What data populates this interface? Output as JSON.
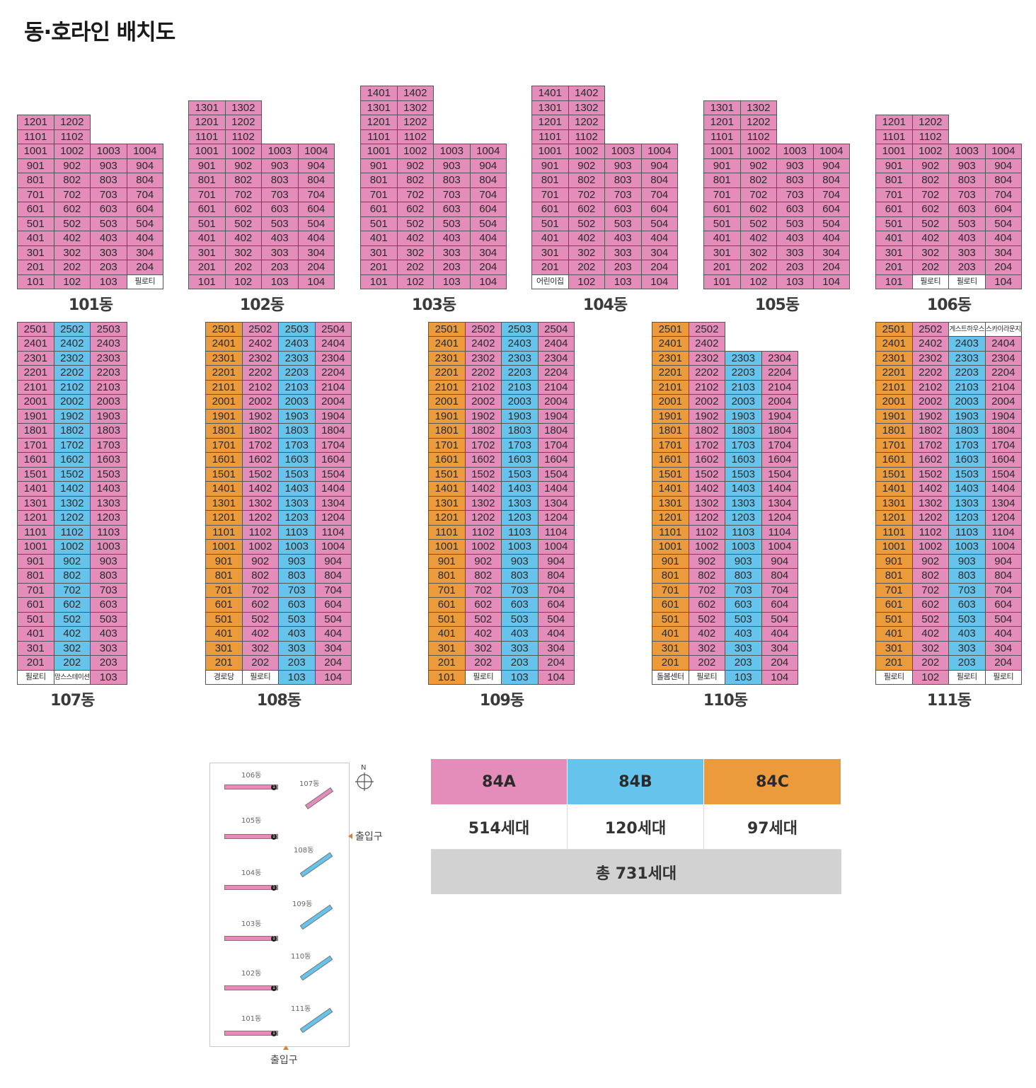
{
  "title": "동·호라인 배치도",
  "colors": {
    "84A": "#e48cba",
    "84B": "#66c4ec",
    "84C": "#eb9a3c",
    "facility": "#ffffff"
  },
  "buildings": [
    {
      "name": "101동",
      "floors": 12,
      "partial": {
        "lines": [
          1,
          2
        ],
        "floors": [
          11,
          12
        ]
      },
      "lines": [
        "A",
        "A",
        "A",
        "A"
      ],
      "ground": [
        null,
        null,
        null,
        "필로티"
      ]
    },
    {
      "name": "102동",
      "floors": 13,
      "partial": {
        "lines": [
          1,
          2
        ],
        "floors": [
          11,
          12,
          13
        ]
      },
      "lines": [
        "A",
        "A",
        "A",
        "A"
      ],
      "ground": [
        null,
        null,
        null,
        null
      ]
    },
    {
      "name": "103동",
      "floors": 14,
      "partial": {
        "lines": [
          1,
          2
        ],
        "floors": [
          11,
          12,
          13,
          14
        ]
      },
      "lines": [
        "A",
        "A",
        "A",
        "A"
      ],
      "ground": [
        null,
        null,
        null,
        null
      ]
    },
    {
      "name": "104동",
      "floors": 14,
      "partial": {
        "lines": [
          1,
          2
        ],
        "floors": [
          11,
          12,
          13,
          14
        ]
      },
      "lines": [
        "A",
        "A",
        "A",
        "A"
      ],
      "ground": [
        "어린이집",
        null,
        null,
        null
      ]
    },
    {
      "name": "105동",
      "floors": 13,
      "partial": {
        "lines": [
          1,
          2
        ],
        "floors": [
          11,
          12,
          13
        ]
      },
      "lines": [
        "A",
        "A",
        "A",
        "A"
      ],
      "ground": [
        null,
        null,
        null,
        null
      ]
    },
    {
      "name": "106동",
      "floors": 12,
      "partial": {
        "lines": [
          1,
          2
        ],
        "floors": [
          11,
          12
        ]
      },
      "lines": [
        "A",
        "A",
        "A",
        "A"
      ],
      "ground": [
        null,
        "필로티",
        "필로티",
        null
      ]
    },
    {
      "name": "107동",
      "floors": 25,
      "partial": null,
      "lines": [
        "A",
        "B",
        "A"
      ],
      "ground": [
        "필로티",
        "맘스스테이션",
        null
      ]
    },
    {
      "name": "108동",
      "floors": 25,
      "partial": null,
      "lines": [
        "C",
        "A",
        "B",
        "A"
      ],
      "ground": [
        "경로당",
        "필로티",
        null,
        null
      ]
    },
    {
      "name": "109동",
      "floors": 25,
      "partial": null,
      "lines": [
        "C",
        "A",
        "B",
        "A"
      ],
      "ground": [
        null,
        "필로티",
        null,
        null
      ]
    },
    {
      "name": "110동",
      "floors": 25,
      "partial": {
        "lines": [
          1,
          2
        ],
        "floors": [
          24,
          25
        ]
      },
      "lines": [
        "C",
        "A",
        "B",
        "A"
      ],
      "ground": [
        "돌봄센터",
        "필로티",
        null,
        null
      ]
    },
    {
      "name": "111동",
      "floors": 25,
      "partial": null,
      "lines": [
        "C",
        "A",
        "B",
        "A"
      ],
      "ground": [
        "필로티",
        null,
        "필로티",
        "필로티"
      ],
      "special": {
        "2503": "게스트하우스",
        "2504": "스카이라운지"
      }
    }
  ],
  "site_map": {
    "north": "N",
    "entrance_east": "출입구",
    "entrance_south": "출입구",
    "labels": [
      "106동",
      "107동",
      "105동",
      "108동",
      "104동",
      "109동",
      "103동",
      "110동",
      "102동",
      "111동",
      "101동"
    ]
  },
  "legend": {
    "types": [
      {
        "name": "84A",
        "count": "514세대",
        "color": "#e48cba"
      },
      {
        "name": "84B",
        "count": "120세대",
        "color": "#66c4ec"
      },
      {
        "name": "84C",
        "count": "97세대",
        "color": "#eb9a3c"
      }
    ],
    "total": "총 731세대"
  }
}
